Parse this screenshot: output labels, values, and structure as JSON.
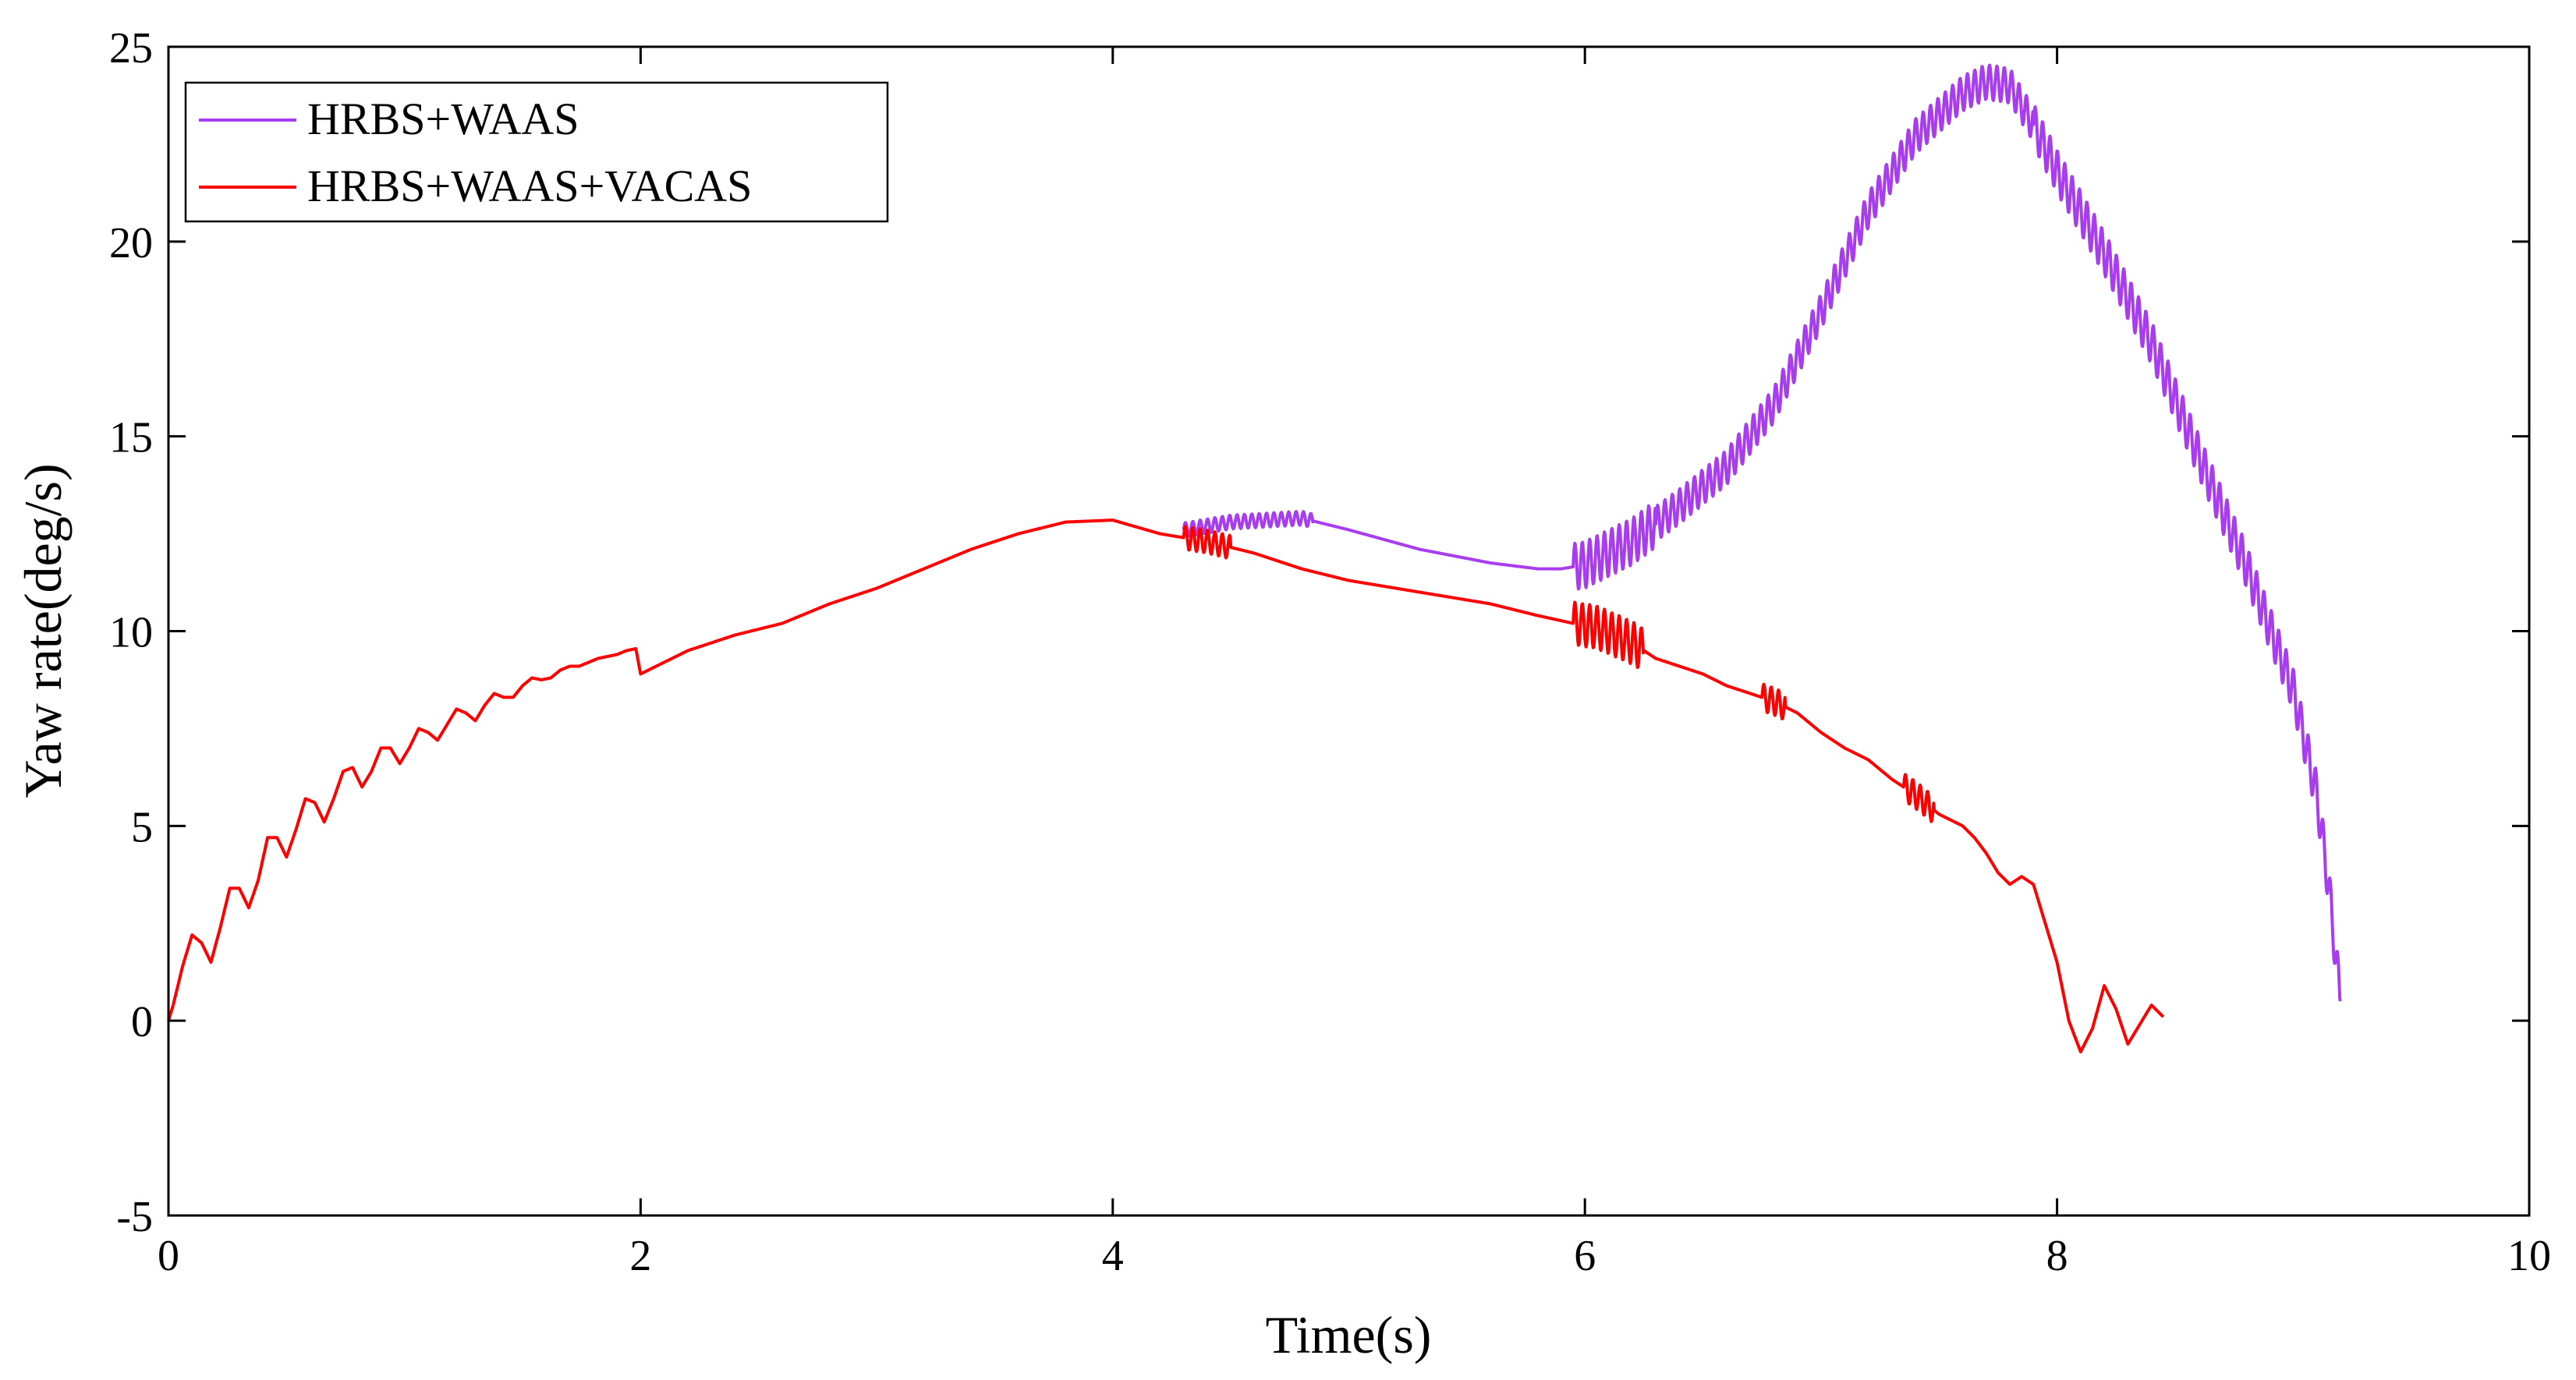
{
  "chart_data": {
    "type": "line",
    "title": "",
    "xlabel": "Time(s)",
    "ylabel": "Yaw rate(deg/s)",
    "xlim": [
      0,
      10
    ],
    "ylim": [
      -5,
      25
    ],
    "xticks": [
      0,
      2,
      4,
      6,
      8,
      10
    ],
    "yticks": [
      -5,
      0,
      5,
      10,
      15,
      20,
      25
    ],
    "grid": false,
    "legend_position": "top-left",
    "series": [
      {
        "name": "HRBS+WAAS",
        "color": "#A83DF0",
        "x": [
          4.3,
          4.5,
          4.8,
          5.0,
          5.3,
          5.6,
          5.8,
          5.9,
          6.0,
          6.2,
          6.4,
          6.6,
          6.8,
          7.0,
          7.2,
          7.4,
          7.6,
          7.7,
          7.8,
          7.9,
          8.0,
          8.2,
          8.4,
          8.6,
          8.8,
          9.0,
          9.1,
          9.15,
          9.2
        ],
        "y": [
          12.6,
          12.8,
          12.9,
          12.6,
          12.1,
          11.75,
          11.6,
          11.6,
          11.7,
          12.3,
          13.2,
          14.2,
          15.8,
          18.2,
          20.8,
          22.7,
          23.8,
          24.1,
          24.0,
          23.0,
          21.8,
          19.7,
          17.4,
          14.5,
          11.7,
          8.5,
          5.8,
          3.5,
          0.5
        ],
        "osc": [
          {
            "from": 4.3,
            "to": 4.85,
            "amp": 0.18
          },
          {
            "from": 5.95,
            "to": 6.3,
            "amp": 0.6
          },
          {
            "from": 6.3,
            "to": 7.9,
            "amp": 0.45
          },
          {
            "from": 7.9,
            "to": 9.2,
            "amp": 0.55
          }
        ]
      },
      {
        "name": "HRBS+WAAS+VACAS",
        "color": "#FF0000",
        "x": [
          0,
          0.02,
          0.06,
          0.1,
          0.14,
          0.18,
          0.22,
          0.26,
          0.3,
          0.34,
          0.38,
          0.42,
          0.46,
          0.5,
          0.54,
          0.58,
          0.62,
          0.66,
          0.7,
          0.74,
          0.78,
          0.82,
          0.86,
          0.9,
          0.94,
          0.98,
          1.02,
          1.06,
          1.1,
          1.14,
          1.18,
          1.22,
          1.26,
          1.3,
          1.34,
          1.38,
          1.42,
          1.46,
          1.5,
          1.54,
          1.58,
          1.62,
          1.66,
          1.7,
          1.74,
          1.78,
          1.82,
          1.86,
          1.9,
          1.94,
          1.98,
          2.0,
          2.2,
          2.4,
          2.6,
          2.8,
          3.0,
          3.2,
          3.4,
          3.6,
          3.8,
          4.0,
          4.2,
          4.4,
          4.6,
          4.8,
          5.0,
          5.2,
          5.4,
          5.6,
          5.8,
          5.95,
          6.05,
          6.2,
          6.3,
          6.4,
          6.5,
          6.6,
          6.7,
          6.8,
          6.9,
          7.0,
          7.1,
          7.2,
          7.3,
          7.4,
          7.5,
          7.6,
          7.65,
          7.7,
          7.75,
          7.8,
          7.85,
          7.9,
          7.95,
          8.0,
          8.05,
          8.1,
          8.15,
          8.2,
          8.25,
          8.3,
          8.35,
          8.4,
          8.45
        ],
        "y": [
          0,
          0.4,
          1.4,
          2.2,
          2.0,
          1.5,
          2.4,
          3.4,
          3.4,
          2.9,
          3.6,
          4.7,
          4.7,
          4.2,
          4.9,
          5.7,
          5.6,
          5.1,
          5.7,
          6.4,
          6.5,
          6.0,
          6.4,
          7.0,
          7.0,
          6.6,
          7.0,
          7.5,
          7.4,
          7.2,
          7.6,
          8.0,
          7.9,
          7.7,
          8.1,
          8.4,
          8.3,
          8.3,
          8.6,
          8.8,
          8.75,
          8.8,
          9.0,
          9.1,
          9.1,
          9.2,
          9.3,
          9.35,
          9.4,
          9.5,
          9.55,
          8.9,
          9.5,
          9.9,
          10.2,
          10.7,
          11.1,
          11.6,
          12.1,
          12.5,
          12.8,
          12.85,
          12.5,
          12.3,
          12.0,
          11.6,
          11.3,
          11.1,
          10.9,
          10.7,
          10.4,
          10.2,
          10.1,
          9.7,
          9.3,
          9.1,
          8.9,
          8.6,
          8.4,
          8.2,
          7.9,
          7.4,
          7.0,
          6.7,
          6.2,
          5.8,
          5.3,
          5.0,
          4.7,
          4.3,
          3.8,
          3.5,
          3.7,
          3.5,
          2.5,
          1.5,
          0.0,
          -0.8,
          -0.2,
          0.9,
          0.3,
          -0.6,
          -0.1,
          0.4,
          0.1
        ],
        "osc": [
          {
            "from": 4.3,
            "to": 4.5,
            "amp": 0.3
          },
          {
            "from": 5.95,
            "to": 6.25,
            "amp": 0.55
          },
          {
            "from": 6.75,
            "to": 6.85,
            "amp": 0.35
          },
          {
            "from": 7.35,
            "to": 7.48,
            "amp": 0.35
          }
        ]
      }
    ]
  }
}
